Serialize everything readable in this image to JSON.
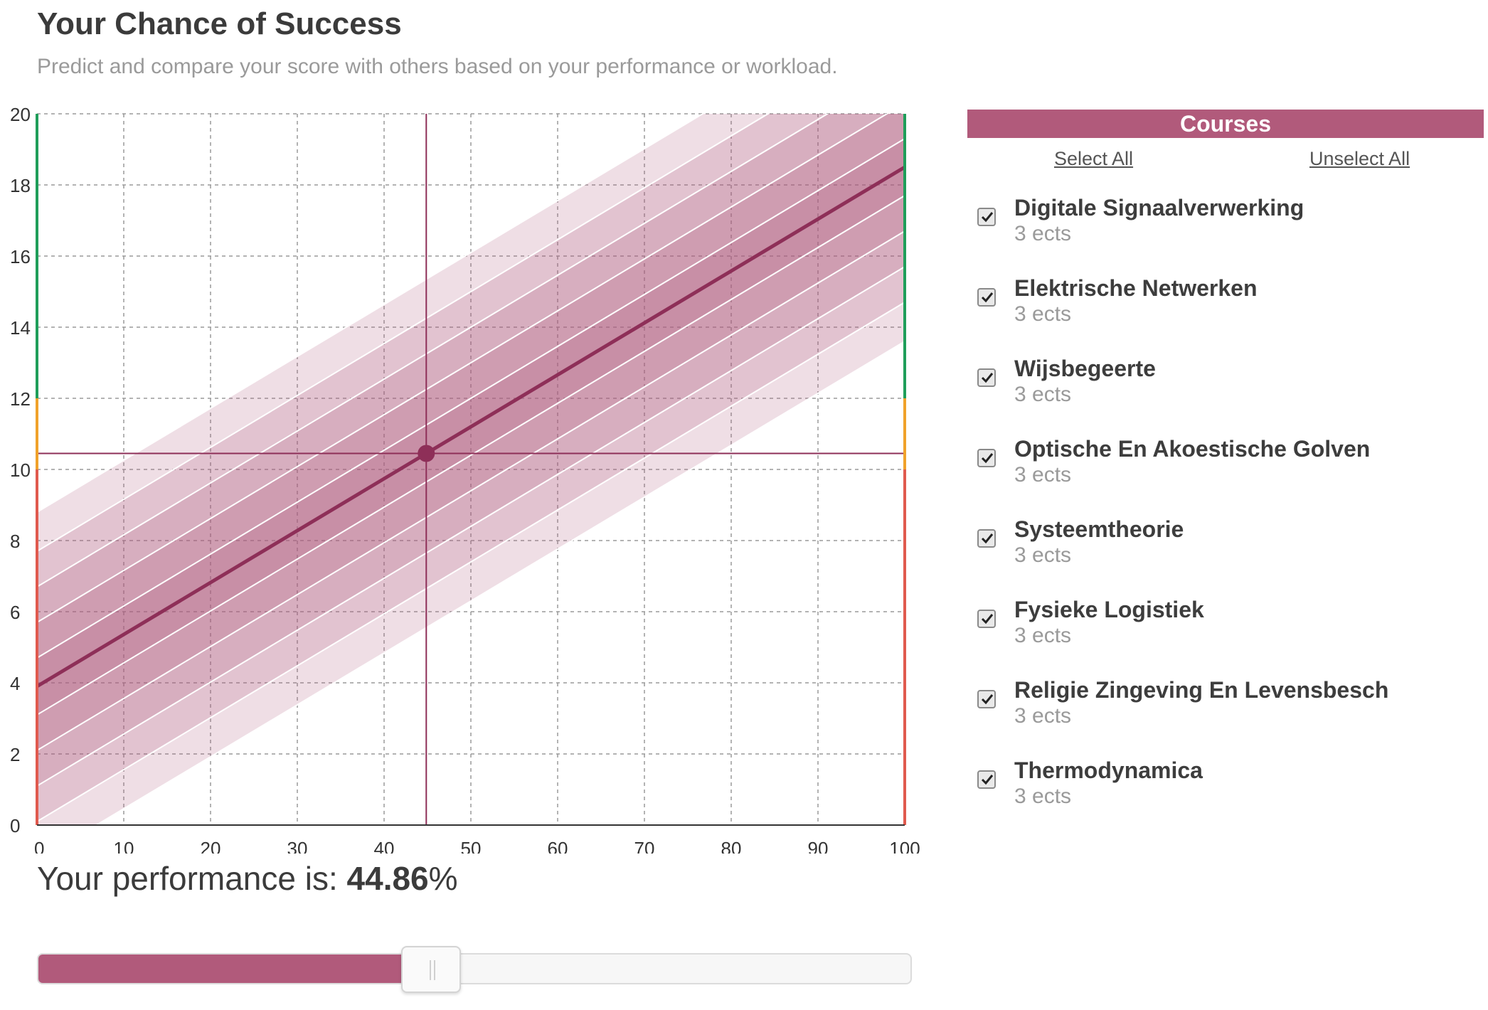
{
  "header": {
    "title": "Your Chance of Success",
    "subtitle": "Predict and compare your score with others based on your performance or workload."
  },
  "performance": {
    "label": "Your performance is: ",
    "value": "44.86",
    "unit": "%",
    "fraction": 0.4486
  },
  "courses": {
    "header": "Courses",
    "select_all": "Select All",
    "unselect_all": "Unselect All",
    "items": [
      {
        "name": "Digitale Signaalverwerking",
        "ects": "3 ects",
        "checked": true
      },
      {
        "name": "Elektrische Netwerken",
        "ects": "3 ects",
        "checked": true
      },
      {
        "name": "Wijsbegeerte",
        "ects": "3 ects",
        "checked": true
      },
      {
        "name": "Optische En Akoestische Golven",
        "ects": "3 ects",
        "checked": true
      },
      {
        "name": "Systeemtheorie",
        "ects": "3 ects",
        "checked": true
      },
      {
        "name": "Fysieke Logistiek",
        "ects": "3 ects",
        "checked": true
      },
      {
        "name": "Religie Zingeving En Levensbesch",
        "ects": "3 ects",
        "checked": true
      },
      {
        "name": "Thermodynamica",
        "ects": "3 ects",
        "checked": true
      }
    ]
  },
  "colors": {
    "accent": "#b15a7b",
    "line": "#8e2f58",
    "fail": "#e05a4e",
    "marginal": "#f0a22a",
    "pass": "#1f9e5a"
  },
  "chart_data": {
    "type": "area",
    "x_ticks": [
      "0",
      "10",
      "20",
      "30",
      "40",
      "50",
      "60",
      "70",
      "80",
      "90",
      "100"
    ],
    "y_ticks": [
      "0",
      "2",
      "4",
      "6",
      "8",
      "10",
      "12",
      "14",
      "16",
      "18",
      "20"
    ],
    "xlim": [
      0,
      100
    ],
    "ylim": [
      0,
      20
    ],
    "grid": true,
    "prediction_line": {
      "x": [
        0,
        100
      ],
      "y": [
        3.9,
        18.5
      ]
    },
    "band_offsets": [
      4.9,
      3.8,
      2.8,
      1.8,
      0.8
    ],
    "marker": {
      "x": 44.86,
      "y": 10.45
    },
    "threshold_zones": [
      {
        "from": 0,
        "to": 10,
        "color": "#e05a4e"
      },
      {
        "from": 10,
        "to": 12,
        "color": "#f0a22a"
      },
      {
        "from": 12,
        "to": 20,
        "color": "#1f9e5a"
      }
    ]
  }
}
